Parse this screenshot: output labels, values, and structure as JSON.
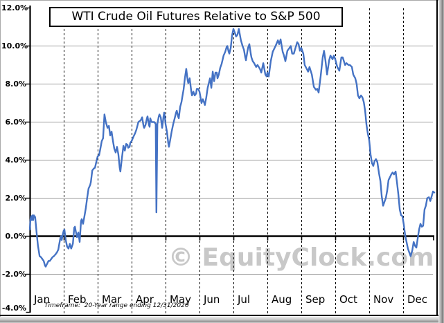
{
  "title": "WTI Crude Oil Futures Relative to S&P 500",
  "watermark": "© EquityClock.com",
  "footer": "Timeframe:  20-Year range ending 12/31/2020",
  "colors": {
    "line": "#4472C4",
    "grid": "#9a9a9a",
    "axis": "#000000",
    "watermark": "#c8c8c8",
    "background": "#ffffff"
  },
  "chart_data": {
    "type": "line",
    "title": "WTI Crude Oil Futures Relative to S&P 500",
    "xlabel": "",
    "ylabel": "",
    "x_categories": [
      "Jan",
      "Feb",
      "Mar",
      "Apr",
      "May",
      "Jun",
      "Jul",
      "Aug",
      "Sep",
      "Oct",
      "Nov",
      "Dec"
    ],
    "y_axis": {
      "ticks": [
        {
          "label": "12.0%",
          "value": 12
        },
        {
          "label": "10.0%",
          "value": 10
        },
        {
          "label": "8.0%",
          "value": 8
        },
        {
          "label": "6.0%",
          "value": 6
        },
        {
          "label": "4.0%",
          "value": 4
        },
        {
          "label": "2.0%",
          "value": 2
        },
        {
          "label": "0.0%",
          "value": 0
        },
        {
          "label": "-2.0%",
          "value": -2
        },
        {
          "label": "-4.0%",
          "value": -4
        }
      ],
      "grid_values": [
        10,
        8,
        6,
        4,
        2,
        -2
      ],
      "zero_line_value": 0
    },
    "ylim": [
      -4,
      12
    ],
    "xlim_months": [
      0,
      12
    ],
    "grid": "horizontal-solid, vertical-dashed-month-boundaries",
    "legend": "none",
    "units": "percent",
    "points": [
      [
        0.0,
        0.35
      ],
      [
        0.02,
        0.9
      ],
      [
        0.04,
        1.05
      ],
      [
        0.06,
        0.85
      ],
      [
        0.08,
        1.1
      ],
      [
        0.1,
        0.85
      ],
      [
        0.12,
        1.1
      ],
      [
        0.16,
        1.0
      ],
      [
        0.2,
        0.2
      ],
      [
        0.24,
        -0.5
      ],
      [
        0.29,
        -1.05
      ],
      [
        0.33,
        -1.1
      ],
      [
        0.37,
        -1.2
      ],
      [
        0.41,
        -1.3
      ],
      [
        0.45,
        -1.55
      ],
      [
        0.47,
        -1.6
      ],
      [
        0.51,
        -1.45
      ],
      [
        0.55,
        -1.3
      ],
      [
        0.59,
        -1.3
      ],
      [
        0.63,
        -1.2
      ],
      [
        0.67,
        -1.1
      ],
      [
        0.71,
        -1.05
      ],
      [
        0.76,
        -0.95
      ],
      [
        0.8,
        -0.85
      ],
      [
        0.84,
        -0.7
      ],
      [
        0.86,
        -0.5
      ],
      [
        0.9,
        -0.1
      ],
      [
        0.92,
        0.0
      ],
      [
        0.94,
        -0.2
      ],
      [
        0.98,
        0.15
      ],
      [
        1.0,
        0.3
      ],
      [
        1.02,
        0.35
      ],
      [
        1.06,
        -0.2
      ],
      [
        1.1,
        -0.55
      ],
      [
        1.14,
        -0.65
      ],
      [
        1.18,
        -0.4
      ],
      [
        1.22,
        -0.65
      ],
      [
        1.27,
        -0.4
      ],
      [
        1.31,
        0.45
      ],
      [
        1.33,
        0.5
      ],
      [
        1.35,
        0.3
      ],
      [
        1.39,
        -0.05
      ],
      [
        1.43,
        0.2
      ],
      [
        1.47,
        -0.3
      ],
      [
        1.51,
        0.8
      ],
      [
        1.53,
        0.9
      ],
      [
        1.57,
        0.65
      ],
      [
        1.61,
        1.05
      ],
      [
        1.65,
        1.45
      ],
      [
        1.69,
        2.0
      ],
      [
        1.73,
        2.5
      ],
      [
        1.78,
        2.7
      ],
      [
        1.8,
        2.85
      ],
      [
        1.84,
        3.45
      ],
      [
        1.88,
        3.55
      ],
      [
        1.92,
        3.6
      ],
      [
        1.96,
        3.9
      ],
      [
        2.0,
        4.2
      ],
      [
        2.04,
        4.25
      ],
      [
        2.08,
        4.6
      ],
      [
        2.12,
        5.0
      ],
      [
        2.16,
        5.15
      ],
      [
        2.2,
        6.4
      ],
      [
        2.24,
        6.0
      ],
      [
        2.29,
        5.7
      ],
      [
        2.33,
        5.8
      ],
      [
        2.37,
        5.3
      ],
      [
        2.41,
        5.5
      ],
      [
        2.45,
        5.0
      ],
      [
        2.49,
        4.6
      ],
      [
        2.53,
        4.4
      ],
      [
        2.57,
        4.7
      ],
      [
        2.61,
        4.3
      ],
      [
        2.65,
        3.6
      ],
      [
        2.67,
        3.4
      ],
      [
        2.71,
        4.05
      ],
      [
        2.76,
        4.75
      ],
      [
        2.8,
        4.5
      ],
      [
        2.84,
        4.85
      ],
      [
        2.88,
        4.8
      ],
      [
        2.9,
        4.65
      ],
      [
        2.94,
        4.7
      ],
      [
        2.96,
        4.9
      ],
      [
        3.0,
        5.0
      ],
      [
        3.06,
        5.25
      ],
      [
        3.1,
        5.4
      ],
      [
        3.14,
        5.6
      ],
      [
        3.2,
        6.0
      ],
      [
        3.27,
        6.1
      ],
      [
        3.31,
        6.25
      ],
      [
        3.35,
        5.8
      ],
      [
        3.37,
        5.7
      ],
      [
        3.41,
        5.85
      ],
      [
        3.45,
        6.2
      ],
      [
        3.47,
        6.3
      ],
      [
        3.51,
        5.85
      ],
      [
        3.53,
        5.75
      ],
      [
        3.55,
        6.2
      ],
      [
        3.59,
        6.0
      ],
      [
        3.63,
        6.0
      ],
      [
        3.67,
        6.0
      ],
      [
        3.71,
        5.9
      ],
      [
        3.73,
        1.25
      ],
      [
        3.76,
        5.9
      ],
      [
        3.8,
        6.3
      ],
      [
        3.82,
        6.4
      ],
      [
        3.86,
        6.25
      ],
      [
        3.9,
        5.7
      ],
      [
        3.94,
        6.3
      ],
      [
        3.96,
        6.5
      ],
      [
        3.98,
        6.3
      ],
      [
        4.0,
        5.9
      ],
      [
        4.04,
        5.5
      ],
      [
        4.08,
        4.9
      ],
      [
        4.1,
        4.7
      ],
      [
        4.14,
        5.1
      ],
      [
        4.18,
        5.5
      ],
      [
        4.22,
        5.85
      ],
      [
        4.27,
        6.2
      ],
      [
        4.31,
        6.5
      ],
      [
        4.33,
        6.6
      ],
      [
        4.37,
        6.3
      ],
      [
        4.39,
        6.2
      ],
      [
        4.43,
        6.8
      ],
      [
        4.47,
        7.05
      ],
      [
        4.51,
        7.5
      ],
      [
        4.53,
        7.7
      ],
      [
        4.57,
        8.3
      ],
      [
        4.61,
        8.8
      ],
      [
        4.65,
        8.2
      ],
      [
        4.67,
        8.05
      ],
      [
        4.71,
        8.3
      ],
      [
        4.76,
        7.6
      ],
      [
        4.78,
        7.4
      ],
      [
        4.82,
        7.6
      ],
      [
        4.86,
        7.4
      ],
      [
        4.9,
        7.5
      ],
      [
        4.92,
        7.75
      ],
      [
        4.96,
        7.75
      ],
      [
        5.0,
        7.6
      ],
      [
        5.04,
        7.2
      ],
      [
        5.06,
        7.0
      ],
      [
        5.1,
        7.2
      ],
      [
        5.14,
        7.0
      ],
      [
        5.16,
        6.9
      ],
      [
        5.2,
        7.3
      ],
      [
        5.24,
        7.8
      ],
      [
        5.31,
        8.3
      ],
      [
        5.35,
        7.8
      ],
      [
        5.39,
        8.65
      ],
      [
        5.43,
        8.15
      ],
      [
        5.47,
        8.6
      ],
      [
        5.51,
        8.6
      ],
      [
        5.53,
        8.3
      ],
      [
        5.57,
        8.5
      ],
      [
        5.61,
        8.85
      ],
      [
        5.65,
        9.05
      ],
      [
        5.71,
        9.5
      ],
      [
        5.76,
        9.7
      ],
      [
        5.8,
        9.95
      ],
      [
        5.82,
        10.0
      ],
      [
        5.86,
        9.7
      ],
      [
        5.88,
        9.6
      ],
      [
        5.92,
        9.9
      ],
      [
        5.96,
        10.55
      ],
      [
        6.0,
        10.9
      ],
      [
        6.04,
        10.7
      ],
      [
        6.08,
        10.5
      ],
      [
        6.12,
        10.6
      ],
      [
        6.16,
        10.9
      ],
      [
        6.2,
        10.5
      ],
      [
        6.22,
        10.3
      ],
      [
        6.27,
        10.0
      ],
      [
        6.31,
        9.8
      ],
      [
        6.35,
        9.4
      ],
      [
        6.37,
        9.25
      ],
      [
        6.41,
        9.7
      ],
      [
        6.43,
        9.9
      ],
      [
        6.47,
        10.1
      ],
      [
        6.51,
        9.6
      ],
      [
        6.53,
        9.4
      ],
      [
        6.57,
        9.2
      ],
      [
        6.61,
        9.1
      ],
      [
        6.67,
        8.9
      ],
      [
        6.71,
        9.0
      ],
      [
        6.78,
        8.8
      ],
      [
        6.82,
        8.6
      ],
      [
        6.88,
        9.1
      ],
      [
        6.94,
        8.5
      ],
      [
        6.98,
        8.4
      ],
      [
        7.0,
        8.6
      ],
      [
        7.04,
        8.4
      ],
      [
        7.1,
        9.2
      ],
      [
        7.16,
        9.7
      ],
      [
        7.24,
        10.0
      ],
      [
        7.31,
        10.3
      ],
      [
        7.35,
        10.1
      ],
      [
        7.39,
        10.35
      ],
      [
        7.45,
        9.7
      ],
      [
        7.49,
        9.5
      ],
      [
        7.53,
        9.2
      ],
      [
        7.59,
        9.75
      ],
      [
        7.65,
        9.9
      ],
      [
        7.69,
        10.0
      ],
      [
        7.73,
        9.6
      ],
      [
        7.78,
        9.6
      ],
      [
        7.82,
        9.85
      ],
      [
        7.88,
        10.2
      ],
      [
        7.92,
        10.1
      ],
      [
        7.96,
        9.75
      ],
      [
        8.0,
        9.9
      ],
      [
        8.06,
        9.6
      ],
      [
        8.1,
        9.0
      ],
      [
        8.16,
        8.8
      ],
      [
        8.2,
        8.65
      ],
      [
        8.24,
        8.9
      ],
      [
        8.31,
        8.5
      ],
      [
        8.37,
        7.85
      ],
      [
        8.43,
        7.7
      ],
      [
        8.47,
        7.75
      ],
      [
        8.51,
        7.55
      ],
      [
        8.57,
        8.4
      ],
      [
        8.63,
        9.4
      ],
      [
        8.67,
        9.75
      ],
      [
        8.71,
        9.25
      ],
      [
        8.76,
        8.5
      ],
      [
        8.82,
        9.25
      ],
      [
        8.86,
        9.5
      ],
      [
        8.92,
        9.3
      ],
      [
        8.96,
        9.5
      ],
      [
        9.0,
        9.3
      ],
      [
        9.06,
        8.9
      ],
      [
        9.12,
        8.7
      ],
      [
        9.18,
        9.4
      ],
      [
        9.22,
        9.4
      ],
      [
        9.29,
        9.0
      ],
      [
        9.33,
        9.1
      ],
      [
        9.39,
        9.0
      ],
      [
        9.43,
        9.0
      ],
      [
        9.49,
        8.9
      ],
      [
        9.53,
        8.5
      ],
      [
        9.59,
        8.3
      ],
      [
        9.63,
        8.0
      ],
      [
        9.67,
        7.4
      ],
      [
        9.71,
        7.25
      ],
      [
        9.76,
        7.4
      ],
      [
        9.8,
        7.3
      ],
      [
        9.84,
        7.05
      ],
      [
        9.88,
        6.6
      ],
      [
        9.92,
        5.85
      ],
      [
        9.96,
        5.4
      ],
      [
        10.0,
        5.05
      ],
      [
        10.04,
        4.3
      ],
      [
        10.08,
        3.85
      ],
      [
        10.12,
        3.7
      ],
      [
        10.16,
        3.95
      ],
      [
        10.2,
        4.05
      ],
      [
        10.24,
        3.9
      ],
      [
        10.29,
        3.3
      ],
      [
        10.33,
        2.9
      ],
      [
        10.37,
        2.1
      ],
      [
        10.41,
        1.6
      ],
      [
        10.45,
        1.8
      ],
      [
        10.49,
        2.0
      ],
      [
        10.53,
        2.4
      ],
      [
        10.57,
        2.95
      ],
      [
        10.61,
        3.1
      ],
      [
        10.65,
        3.25
      ],
      [
        10.69,
        3.35
      ],
      [
        10.73,
        3.25
      ],
      [
        10.78,
        3.4
      ],
      [
        10.82,
        2.8
      ],
      [
        10.86,
        2.2
      ],
      [
        10.9,
        1.4
      ],
      [
        10.94,
        1.1
      ],
      [
        10.98,
        1.05
      ],
      [
        11.02,
        0.6
      ],
      [
        11.06,
        0.05
      ],
      [
        11.1,
        -0.3
      ],
      [
        11.14,
        -0.65
      ],
      [
        11.18,
        -0.85
      ],
      [
        11.22,
        -1.05
      ],
      [
        11.27,
        -0.75
      ],
      [
        11.31,
        -0.3
      ],
      [
        11.35,
        -0.5
      ],
      [
        11.39,
        -0.6
      ],
      [
        11.43,
        -0.1
      ],
      [
        11.47,
        0.35
      ],
      [
        11.51,
        0.65
      ],
      [
        11.55,
        0.5
      ],
      [
        11.59,
        0.55
      ],
      [
        11.63,
        1.4
      ],
      [
        11.67,
        1.6
      ],
      [
        11.71,
        2.0
      ],
      [
        11.76,
        2.05
      ],
      [
        11.8,
        1.85
      ],
      [
        11.84,
        2.1
      ],
      [
        11.88,
        2.35
      ],
      [
        11.92,
        2.3
      ]
    ]
  }
}
